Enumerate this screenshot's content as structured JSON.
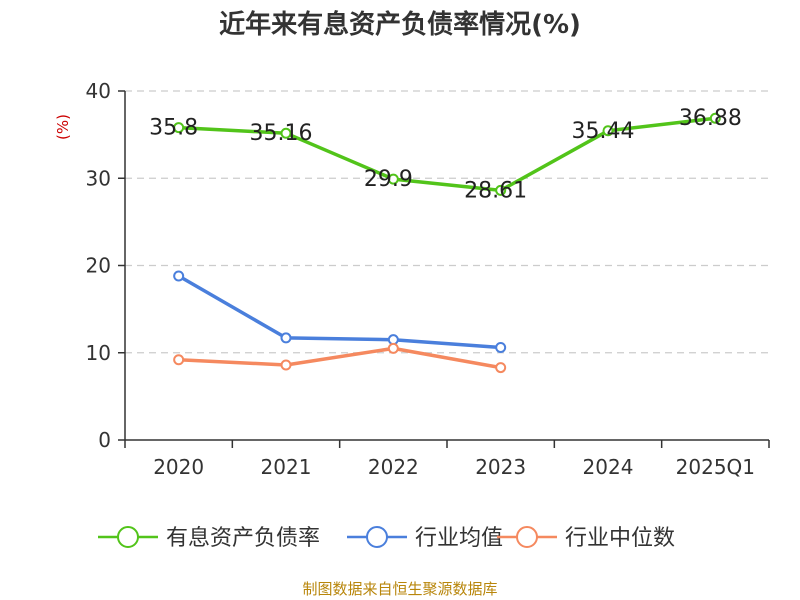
{
  "chart_data": {
    "type": "line",
    "title": "近年来有息资产负债率情况(%)",
    "ylabel": "(%)",
    "categories": [
      "2020",
      "2021",
      "2022",
      "2023",
      "2024",
      "2025Q1"
    ],
    "ylim": [
      0,
      40
    ],
    "yticks": [
      "0",
      "10",
      "20",
      "30",
      "40"
    ],
    "grid": true,
    "legend_position": "bottom",
    "series": [
      {
        "name": "有息资产负债率",
        "color": "#52c41a",
        "values": [
          35.8,
          35.16,
          29.9,
          28.61,
          35.44,
          36.88
        ],
        "labels": [
          "35.8",
          "35.16",
          "29.9",
          "28.61",
          "35.44",
          "36.88"
        ]
      },
      {
        "name": "行业均值",
        "color": "#4a7fdc",
        "values": [
          18.8,
          11.7,
          11.5,
          10.6,
          null,
          null
        ]
      },
      {
        "name": "行业中位数",
        "color": "#f5895f",
        "values": [
          9.2,
          8.6,
          10.5,
          8.3,
          null,
          null
        ]
      }
    ],
    "source": "制图数据来自恒生聚源数据库"
  }
}
